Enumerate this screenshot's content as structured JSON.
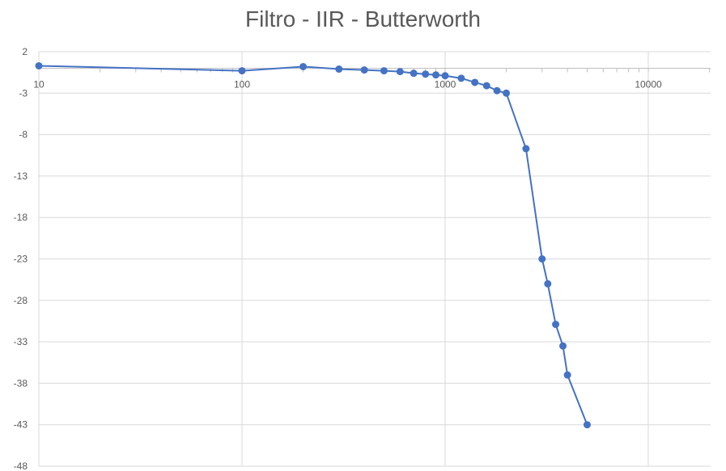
{
  "chart_data": {
    "type": "scatter",
    "title": "Filtro - IIR - Butterworth",
    "xlabel": "",
    "ylabel": "",
    "x_scale": "log",
    "xlim": [
      10,
      20000
    ],
    "ylim": [
      -48,
      2
    ],
    "x_ticks": [
      10,
      100,
      1000,
      10000
    ],
    "x_tick_labels": [
      "10",
      "100",
      "1000",
      "10000"
    ],
    "y_ticks": [
      2,
      -3,
      -8,
      -13,
      -18,
      -23,
      -28,
      -33,
      -38,
      -43,
      -48
    ],
    "y_tick_labels": [
      "2",
      "-3",
      "-8",
      "-13",
      "-18",
      "-23",
      "-28",
      "-33",
      "-38",
      "-43",
      "-48"
    ],
    "grid": true,
    "line_color": "#4472C4",
    "series": [
      {
        "x": [
          10,
          100,
          200,
          300,
          400,
          500,
          600,
          700,
          800,
          900,
          1000,
          1200,
          1400,
          1600,
          1800,
          2000,
          2500,
          3000,
          3200,
          3500,
          3800,
          4000,
          5000
        ],
        "values": [
          0.3,
          -0.3,
          0.2,
          -0.1,
          -0.2,
          -0.3,
          -0.4,
          -0.6,
          -0.7,
          -0.8,
          -0.9,
          -1.2,
          -1.7,
          -2.1,
          -2.7,
          -3.0,
          -9.7,
          -23.0,
          -26.0,
          -30.9,
          -33.5,
          -37.0,
          -43.0
        ]
      }
    ]
  }
}
